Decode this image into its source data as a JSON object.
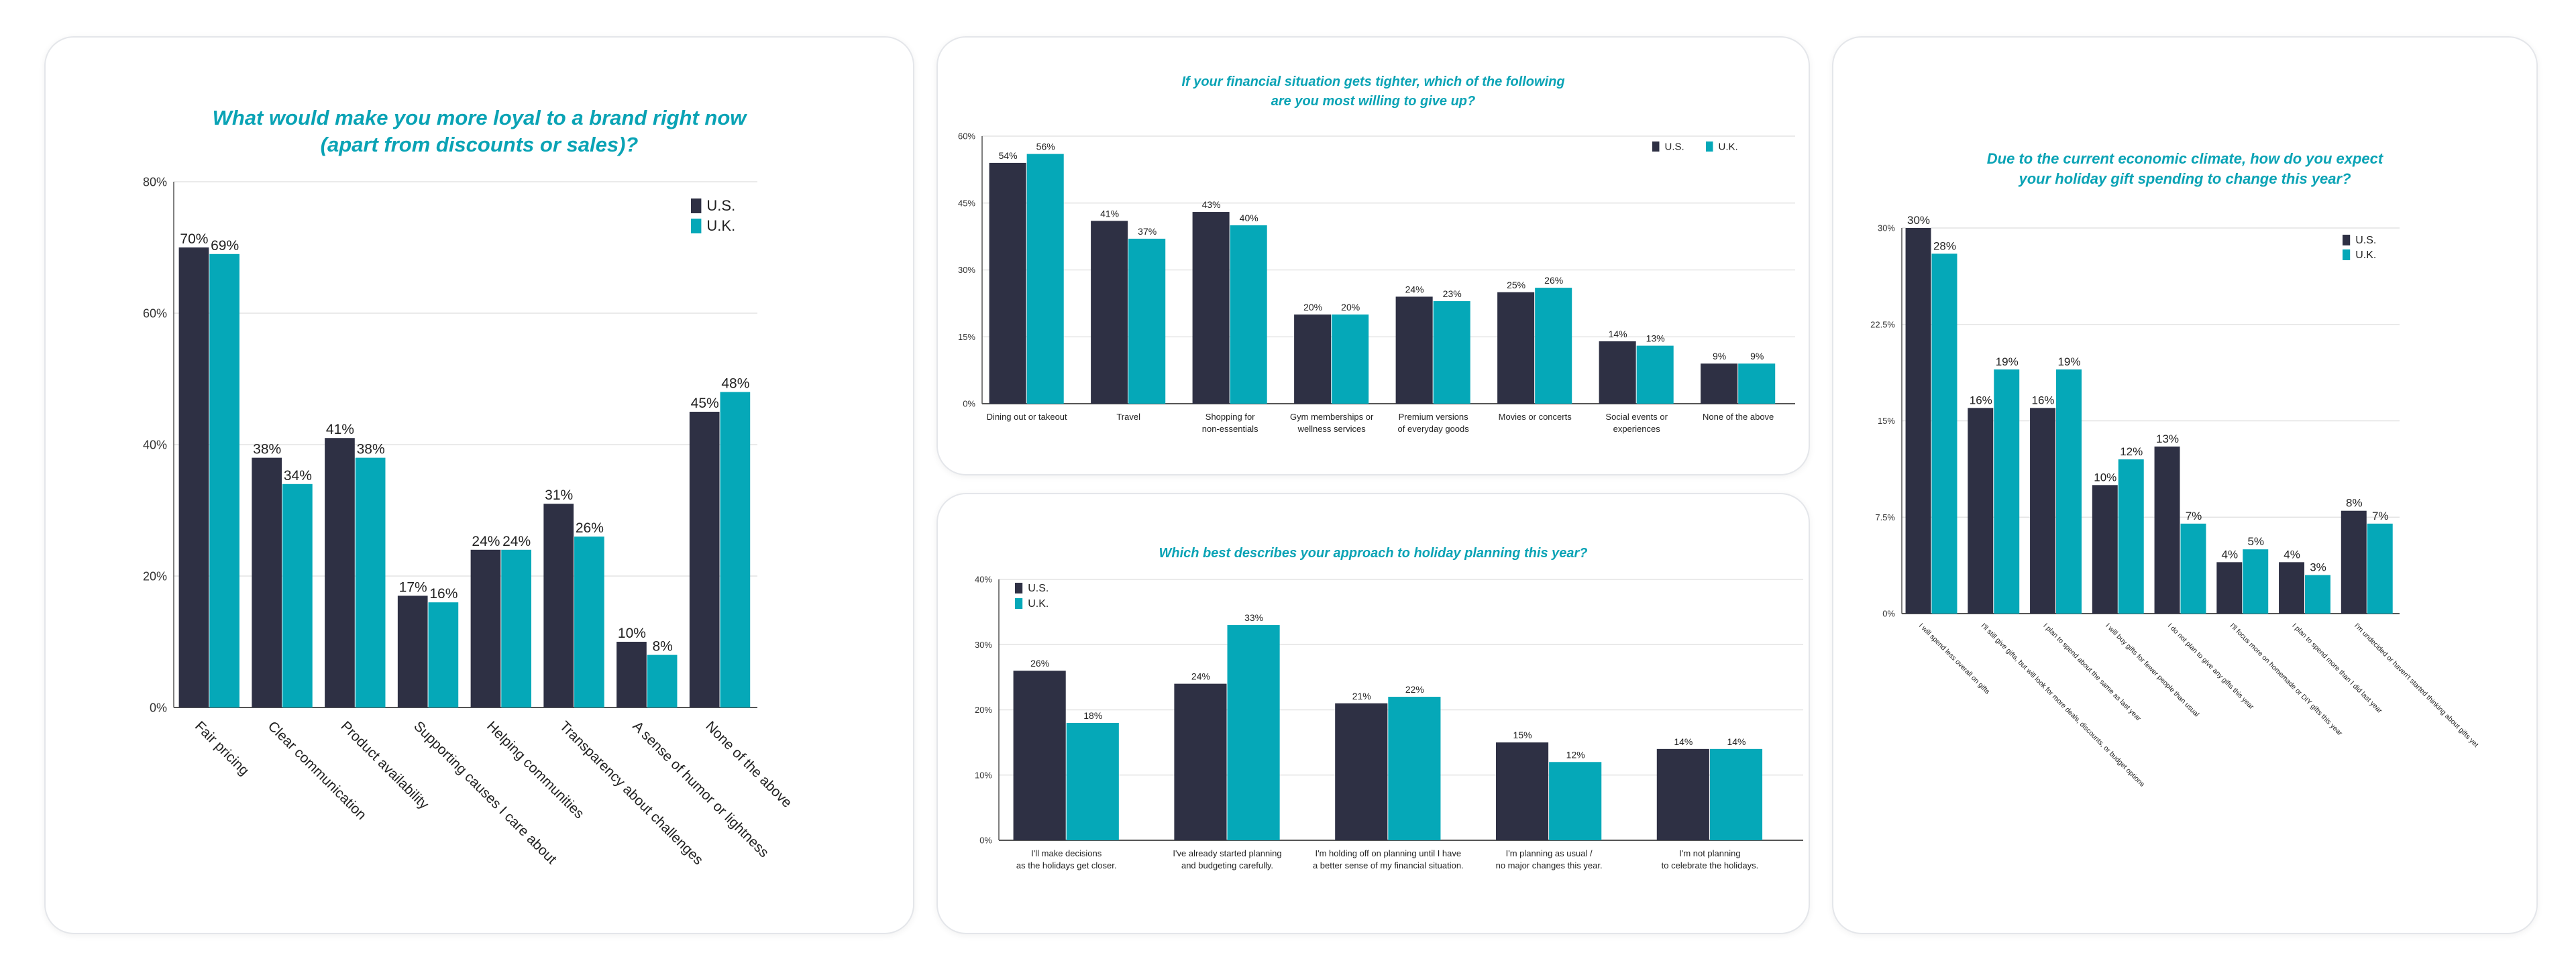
{
  "colors": {
    "us": "#2e3044",
    "uk": "#05a8b8",
    "title": "#0aa3b5"
  },
  "chart_data": [
    {
      "type": "bar",
      "title": [
        "What would make you more loyal to a brand right now",
        "(apart from discounts or sales)?"
      ],
      "categories": [
        "Fair pricing",
        "Clear communication",
        "Product availability",
        "Supporting causes I care about",
        "Helping communities",
        "Transparency about challenges",
        "A sense of humor or lightness",
        "None of the above"
      ],
      "series": [
        {
          "name": "U.S.",
          "values": [
            70,
            38,
            41,
            17,
            24,
            31,
            10,
            45
          ]
        },
        {
          "name": "U.K.",
          "values": [
            69,
            34,
            38,
            16,
            24,
            26,
            8,
            48
          ]
        }
      ],
      "yticks": [
        "0%",
        "20%",
        "40%",
        "60%",
        "80%"
      ],
      "ylim": [
        0,
        80
      ],
      "grid": true,
      "legend": "top-right",
      "label_rotation": "diagonal"
    },
    {
      "type": "bar",
      "title": [
        "If your financial situation gets tighter, which of the following",
        "are you most willing to give up?"
      ],
      "categories": [
        [
          "Dining out or takeout"
        ],
        [
          "Travel"
        ],
        [
          "Shopping for",
          "non-essentials"
        ],
        [
          "Gym memberships or",
          "wellness services"
        ],
        [
          "Premium versions",
          "of everyday goods"
        ],
        [
          "Movies or concerts"
        ],
        [
          "Social events or",
          "experiences"
        ],
        [
          "None of the above"
        ]
      ],
      "series": [
        {
          "name": "U.S.",
          "values": [
            54,
            41,
            43,
            20,
            24,
            25,
            14,
            9
          ]
        },
        {
          "name": "U.K.",
          "values": [
            56,
            37,
            40,
            20,
            23,
            26,
            13,
            9
          ]
        }
      ],
      "yticks": [
        "0%",
        "15%",
        "30%",
        "45%",
        "60%"
      ],
      "ylim": [
        0,
        60
      ],
      "grid": true,
      "legend": "top-right"
    },
    {
      "type": "bar",
      "title": [
        "Which best describes your approach to holiday planning this year?"
      ],
      "categories": [
        [
          "I'll make decisions",
          "as the holidays get closer."
        ],
        [
          "I've already started planning",
          "and budgeting carefully."
        ],
        [
          "I'm holding off on planning until I have",
          "a better sense of my financial situation."
        ],
        [
          "I'm planning as usual /",
          "no major changes this year."
        ],
        [
          "I'm not planning",
          "to celebrate the holidays."
        ]
      ],
      "series": [
        {
          "name": "U.S.",
          "values": [
            26,
            24,
            21,
            15,
            14
          ]
        },
        {
          "name": "U.K.",
          "values": [
            18,
            33,
            22,
            12,
            14
          ]
        }
      ],
      "yticks": [
        "0%",
        "10%",
        "20%",
        "30%",
        "40%"
      ],
      "ylim": [
        0,
        40
      ],
      "grid": true,
      "legend": "top-left"
    },
    {
      "type": "bar",
      "title": [
        "Due to the current economic climate, how do you expect",
        "your holiday gift spending to change this year?"
      ],
      "categories": [
        "I will spend less overall on gifts",
        "I'll still give gifts, but will look for more deals, discounts, or budget options",
        "I plan to spend about the same as last year",
        "I will buy gifts for fewer people than usual",
        "I do not plan to give any gifts this year",
        "I'll focus more on homemade or DIY gifts this year",
        "I plan to spend more than I did last year",
        "I'm undecided or haven't started thinking about gifts yet"
      ],
      "series": [
        {
          "name": "U.S.",
          "values": [
            30,
            16,
            16,
            10,
            13,
            4,
            4,
            8
          ]
        },
        {
          "name": "U.K.",
          "values": [
            28,
            19,
            19,
            12,
            7,
            5,
            3,
            7
          ]
        }
      ],
      "yticks": [
        "0%",
        "7.5%",
        "15%",
        "22.5%",
        "30%"
      ],
      "ylim": [
        0,
        30
      ],
      "grid": true,
      "legend": "top-right",
      "label_rotation": "diagonal"
    }
  ]
}
